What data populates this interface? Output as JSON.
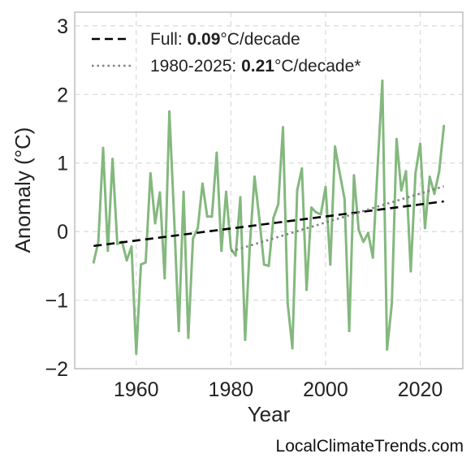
{
  "chart_data": {
    "type": "line",
    "xlabel": "Year",
    "ylabel": "Anomaly (°C)",
    "xlim": [
      1947,
      2029
    ],
    "ylim": [
      -2,
      3.2
    ],
    "x_ticks": [
      1960,
      1980,
      2000,
      2020
    ],
    "y_ticks": [
      -2,
      -1,
      0,
      1,
      2,
      3
    ],
    "y_tick_labels": [
      "−2",
      "−1",
      "0",
      "1",
      "2",
      "3"
    ],
    "grid": true,
    "legend_position": "top-left",
    "colors": {
      "series": "#84b87e",
      "full_trend": "#000000",
      "recent_trend": "#808080"
    },
    "series": [
      {
        "x": [
          1951,
          1952,
          1953,
          1954,
          1955,
          1956,
          1957,
          1958,
          1959,
          1960,
          1961,
          1962,
          1963,
          1964,
          1965,
          1966,
          1967,
          1968,
          1969,
          1970,
          1971,
          1972,
          1973,
          1974,
          1975,
          1976,
          1977,
          1978,
          1979,
          1980,
          1981,
          1982,
          1983,
          1984,
          1985,
          1986,
          1987,
          1988,
          1989,
          1990,
          1991,
          1992,
          1993,
          1994,
          1995,
          1996,
          1997,
          1998,
          1999,
          2000,
          2001,
          2002,
          2003,
          2004,
          2005,
          2006,
          2007,
          2008,
          2009,
          2010,
          2011,
          2012,
          2013,
          2014,
          2015,
          2016,
          2017,
          2018,
          2019,
          2020,
          2021,
          2022,
          2023,
          2024,
          2025
        ],
        "values": [
          -0.45,
          -0.15,
          1.22,
          -0.28,
          1.06,
          -0.18,
          -0.15,
          -0.42,
          -0.22,
          -1.78,
          -0.48,
          -0.45,
          0.85,
          0.12,
          0.57,
          -0.68,
          1.75,
          0.22,
          -1.45,
          0.58,
          -1.55,
          -0.1,
          0.05,
          0.7,
          0.22,
          0.22,
          1.15,
          -0.28,
          0.58,
          -0.25,
          -0.35,
          0.5,
          -1.58,
          -0.2,
          0.8,
          0.2,
          -0.48,
          -0.5,
          0.2,
          0.4,
          1.52,
          -1.05,
          -1.7,
          0.6,
          0.92,
          -0.85,
          0.35,
          0.28,
          0.25,
          0.65,
          -0.48,
          1.24,
          0.85,
          0.48,
          -1.45,
          0.82,
          0.02,
          -0.15,
          -0.02,
          -0.38,
          0.95,
          2.2,
          -1.72,
          -1.05,
          1.35,
          0.6,
          0.88,
          -0.58,
          0.85,
          1.28,
          0.05,
          0.8,
          0.55,
          0.88,
          1.54
        ]
      }
    ],
    "trend_lines": [
      {
        "style": "dashed",
        "x": [
          1951,
          2025
        ],
        "y": [
          -0.21,
          0.44
        ]
      },
      {
        "style": "dotted",
        "x": [
          1980,
          2025
        ],
        "y": [
          -0.29,
          0.66
        ]
      }
    ],
    "legend": [
      {
        "prefix": "Full: ",
        "bold": "0.09",
        "suffix": "°C/decade"
      },
      {
        "prefix": "1980-2025: ",
        "bold": "0.21",
        "suffix": "°C/decade*"
      }
    ]
  },
  "credit": "LocalClimateTrends.com"
}
